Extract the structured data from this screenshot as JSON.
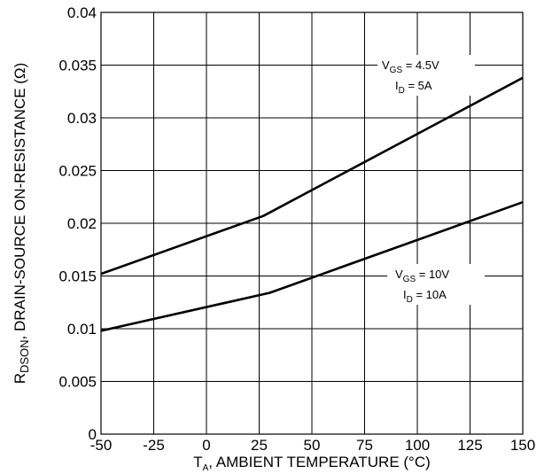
{
  "chart_data": {
    "type": "line",
    "x_ticks": [
      "-50",
      "-25",
      "0",
      "25",
      "50",
      "75",
      "100",
      "125",
      "150"
    ],
    "y_ticks": [
      "0",
      "0.005",
      "0.01",
      "0.015",
      "0.02",
      "0.025",
      "0.03",
      "0.035",
      "0.04"
    ],
    "xlim": [
      -50,
      150
    ],
    "ylim": [
      0,
      0.04
    ],
    "grid": true,
    "xlabel": {
      "main": "T",
      "sub": "A",
      "rest": ", AMBIENT TEMPERATURE (°C)"
    },
    "ylabel": {
      "main": "R",
      "sub": "DSON",
      "rest": ", DRAIN-SOURCE ON-RESISTANCE (Ω)"
    },
    "series": [
      {
        "x": [
          -50,
          27,
          150
        ],
        "y": [
          0.0152,
          0.0207,
          0.0338
        ],
        "annotation": {
          "line1": {
            "main": "V",
            "sub": "GS",
            "rest": " = 4.5V"
          },
          "line2": {
            "main": "I",
            "sub": "D",
            "rest": " = 5A"
          }
        }
      },
      {
        "x": [
          -50,
          30,
          150
        ],
        "y": [
          0.0098,
          0.0134,
          0.022
        ],
        "annotation": {
          "line1": {
            "main": "V",
            "sub": "GS",
            "rest": " = 10V"
          },
          "line2": {
            "main": "I",
            "sub": "D",
            "rest": " = 10A"
          }
        }
      }
    ]
  }
}
